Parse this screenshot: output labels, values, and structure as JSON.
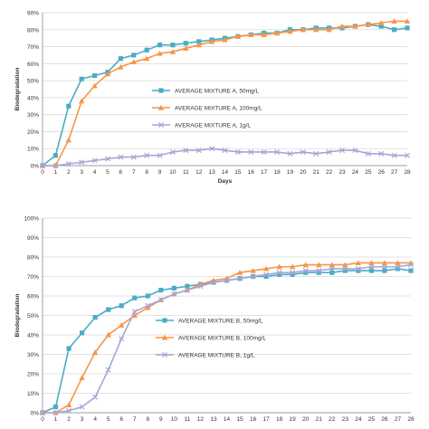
{
  "chart_data": [
    {
      "type": "line",
      "title": "",
      "xlabel": "Days",
      "ylabel": "Biodegradation",
      "x": [
        0,
        1,
        2,
        3,
        4,
        5,
        6,
        7,
        8,
        9,
        10,
        11,
        12,
        13,
        14,
        15,
        16,
        17,
        18,
        19,
        20,
        21,
        22,
        23,
        24,
        25,
        26,
        27,
        28
      ],
      "xticks": [
        "0",
        "1",
        "2",
        "3",
        "4",
        "5",
        "6",
        "7",
        "8",
        "9",
        "10",
        "11",
        "12",
        "13",
        "14",
        "15",
        "16",
        "17",
        "18",
        "19",
        "20",
        "21",
        "22",
        "23",
        "24",
        "25",
        "26",
        "27",
        "28"
      ],
      "ylim": [
        0,
        90
      ],
      "yticks": [
        "0%",
        "10%",
        "20%",
        "30%",
        "40%",
        "50%",
        "60%",
        "70%",
        "80%",
        "90%"
      ],
      "grid": true,
      "legend_position": "center",
      "series": [
        {
          "name": "AVERAGE MIXTURE A, 50mg/L",
          "color": "#4bacc6",
          "marker": "square",
          "values": [
            0,
            6,
            35,
            51,
            53,
            55,
            63,
            65,
            68,
            71,
            71,
            72,
            73,
            74,
            75,
            76,
            77,
            78,
            78,
            80,
            80,
            81,
            81,
            81,
            82,
            83,
            82,
            80,
            81
          ]
        },
        {
          "name": "AVERAGE MIXTURE A, 100mg/L",
          "color": "#f79646",
          "marker": "triangle",
          "values": [
            0,
            0,
            15,
            38,
            47,
            54,
            58,
            61,
            63,
            66,
            67,
            69,
            71,
            73,
            74,
            76,
            77,
            77,
            78,
            79,
            80,
            80,
            80,
            82,
            82,
            83,
            84,
            85,
            85
          ]
        },
        {
          "name": "AVERAGE MIXTURE A, 1g/L",
          "color": "#a5a5d6",
          "marker": "x",
          "values": [
            0,
            0,
            1,
            2,
            3,
            4,
            5,
            5,
            6,
            6,
            8,
            9,
            9,
            10,
            9,
            8,
            8,
            8,
            8,
            7,
            8,
            7,
            8,
            9,
            9,
            7,
            7,
            6,
            6
          ]
        }
      ]
    },
    {
      "type": "line",
      "title": "",
      "xlabel": "",
      "ylabel": "Biodegradation",
      "x": [
        0,
        1,
        2,
        3,
        4,
        5,
        6,
        7,
        8,
        9,
        10,
        11,
        12,
        13,
        14,
        15,
        16,
        17,
        18,
        19,
        20,
        21,
        22,
        23,
        24,
        25,
        26,
        27,
        28
      ],
      "xticks": [
        "0",
        "1",
        "2",
        "3",
        "4",
        "5",
        "6",
        "7",
        "8",
        "9",
        "10",
        "11",
        "12",
        "13",
        "14",
        "15",
        "16",
        "17",
        "18",
        "19",
        "20",
        "21",
        "22",
        "23",
        "24",
        "25",
        "26",
        "27",
        "28"
      ],
      "ylim": [
        0,
        100
      ],
      "yticks": [
        "0%",
        "10%",
        "20%",
        "30%",
        "40%",
        "50%",
        "60%",
        "70%",
        "80%",
        "90%",
        "100%"
      ],
      "grid": true,
      "legend_position": "center",
      "series": [
        {
          "name": "AVERAGE MIXTURE B, 50mg/L",
          "color": "#4bacc6",
          "marker": "square",
          "values": [
            0,
            3,
            33,
            41,
            49,
            53,
            55,
            59,
            60,
            63,
            64,
            65,
            66,
            67,
            68,
            69,
            70,
            70,
            71,
            71,
            72,
            72,
            72,
            73,
            73,
            73,
            73,
            74,
            73
          ]
        },
        {
          "name": "AVERAGE MIXTURE B, 100mg/L",
          "color": "#f79646",
          "marker": "triangle",
          "values": [
            0,
            0,
            4,
            18,
            31,
            40,
            45,
            50,
            54,
            58,
            61,
            63,
            66,
            68,
            69,
            72,
            73,
            74,
            75,
            75,
            76,
            76,
            76,
            76,
            77,
            77,
            77,
            77,
            77
          ]
        },
        {
          "name": "AVERAGE MIXTURE B, 1g/L",
          "color": "#a5a5d6",
          "marker": "x",
          "values": [
            0,
            0,
            1,
            3,
            8,
            22,
            38,
            52,
            55,
            58,
            61,
            63,
            65,
            67,
            68,
            69,
            70,
            71,
            72,
            72,
            73,
            73,
            74,
            74,
            74,
            75,
            75,
            75,
            76
          ]
        }
      ]
    }
  ]
}
